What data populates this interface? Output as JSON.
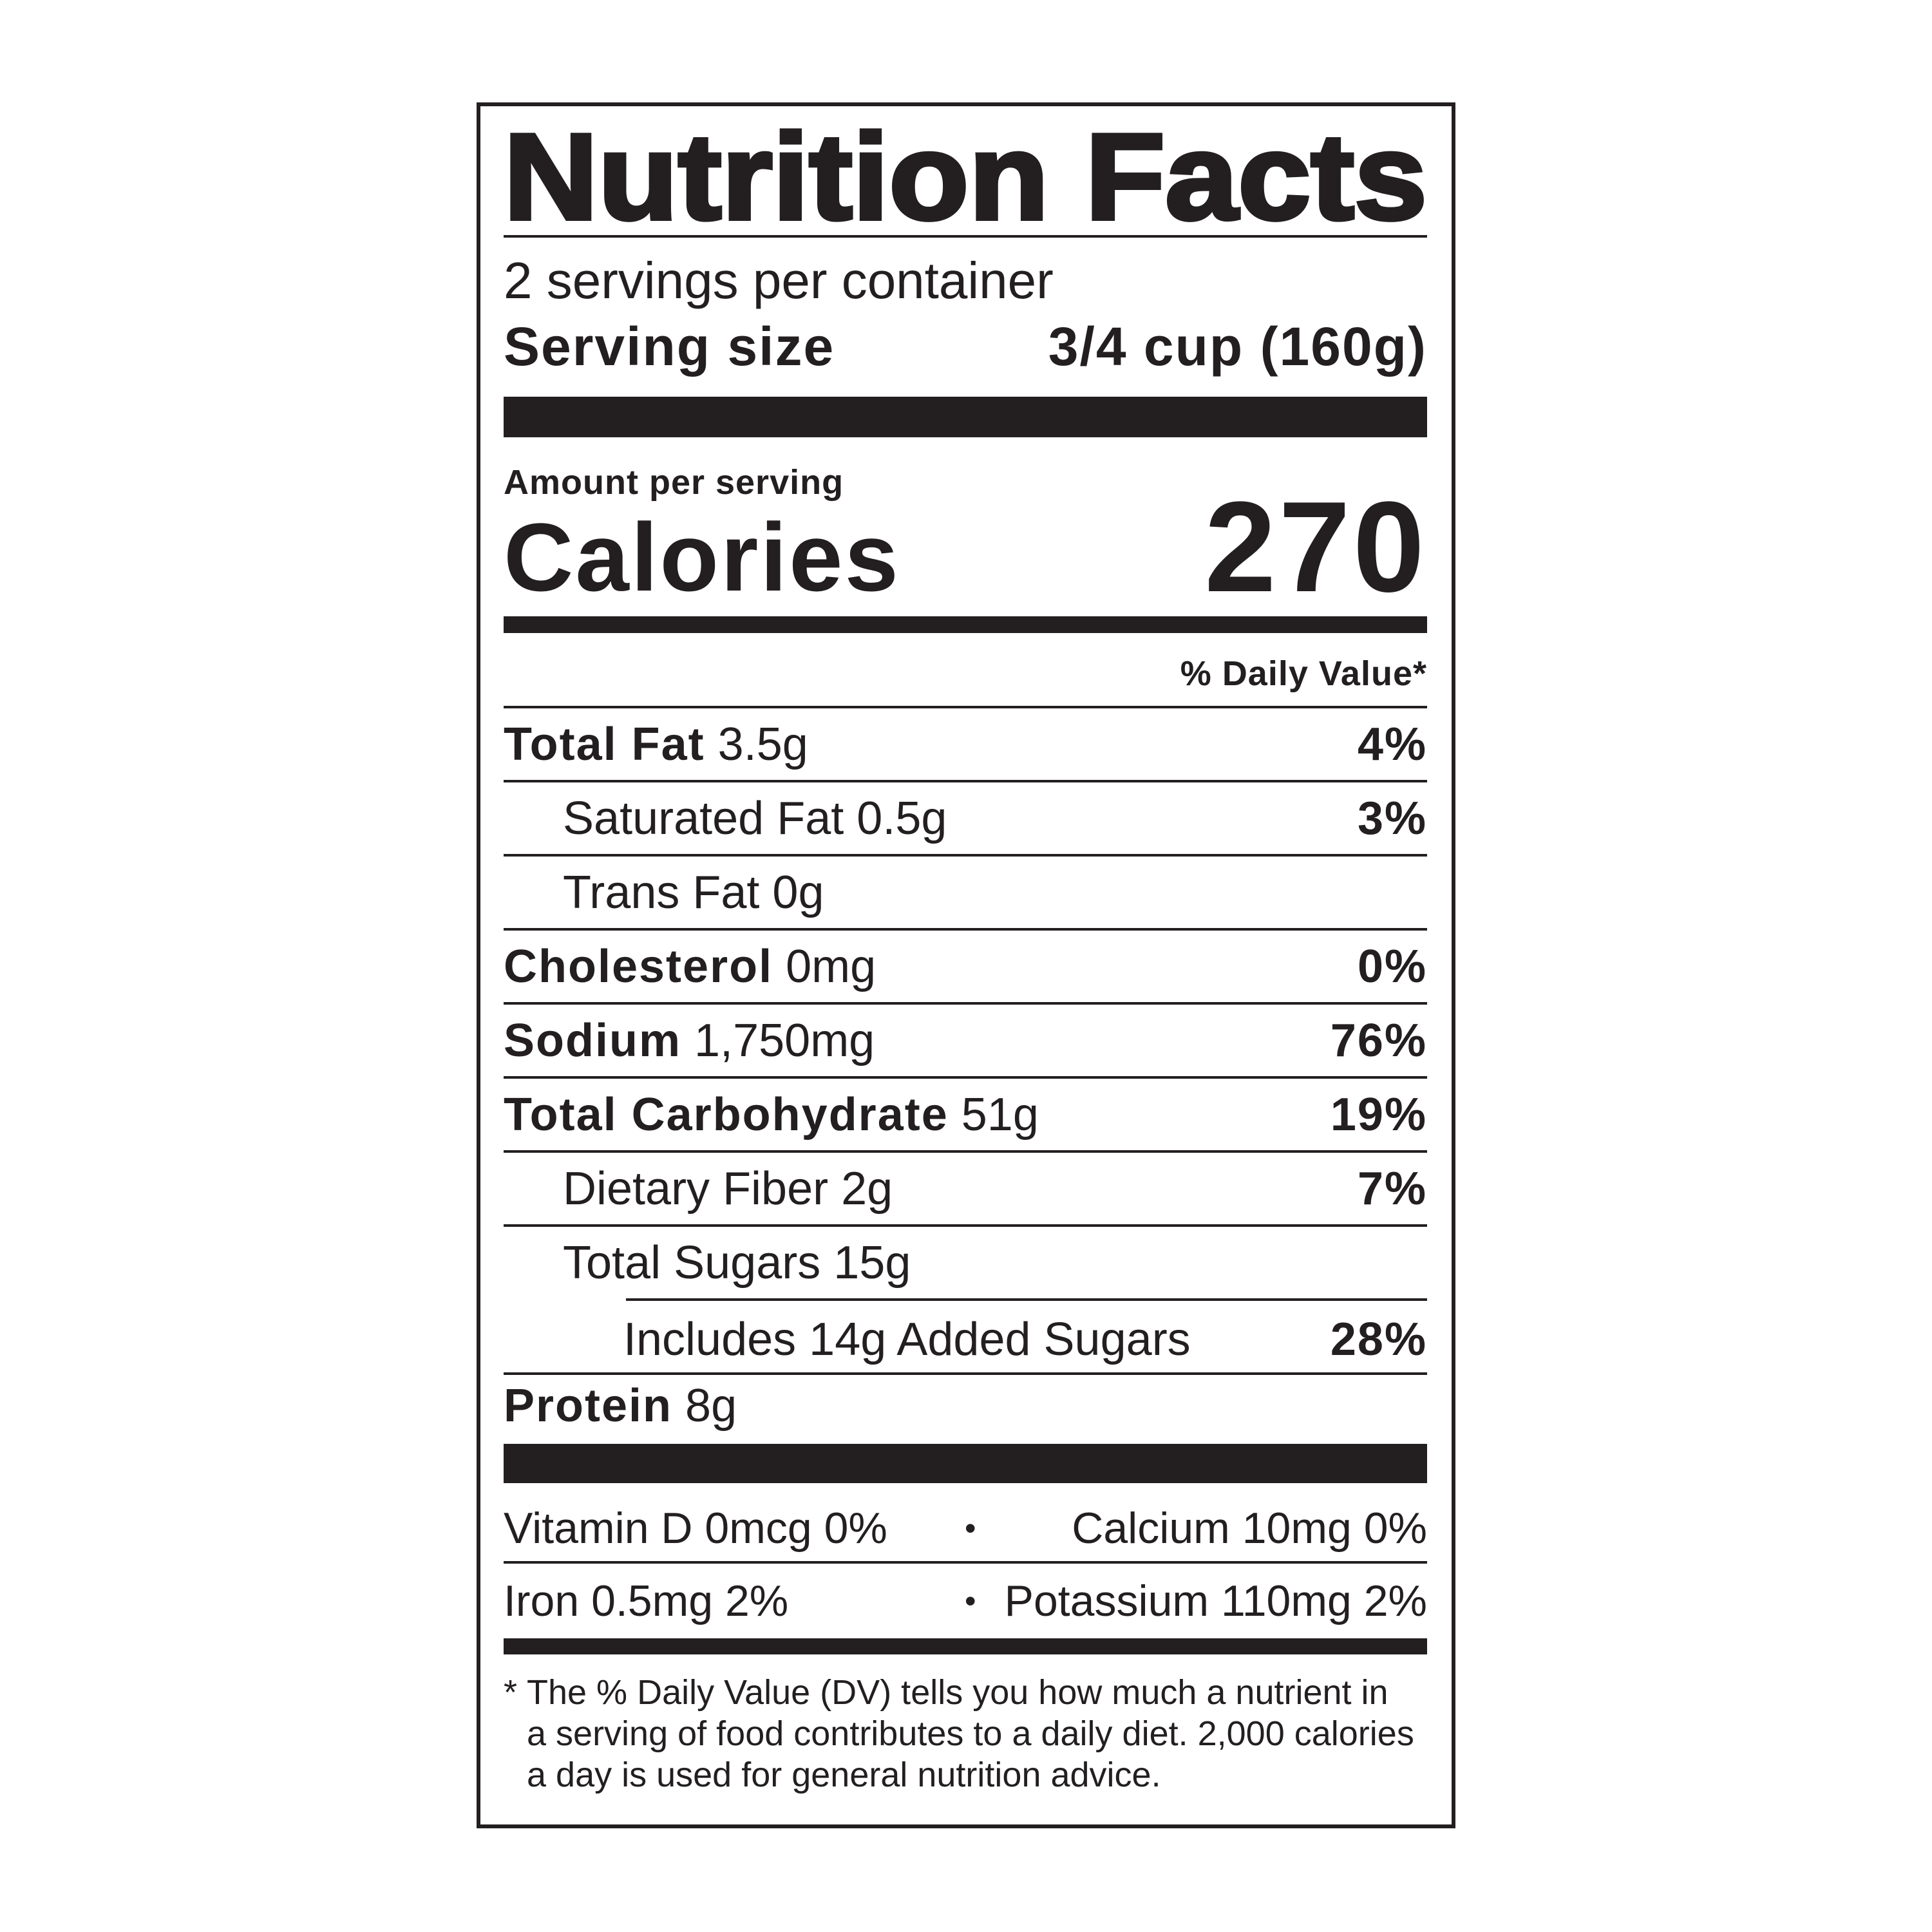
{
  "title": "Nutrition Facts",
  "servings_per_container": "2 servings per container",
  "serving_size": {
    "label": "Serving size",
    "value": "3/4 cup (160g)"
  },
  "amount_per_serving": "Amount per serving",
  "calories": {
    "label": "Calories",
    "value": "270"
  },
  "daily_value_header": "% Daily Value*",
  "nutrients": [
    {
      "name": "Total Fat",
      "amount": "3.5g",
      "dv": "4%"
    },
    {
      "name": "Saturated Fat",
      "amount": "0.5g",
      "dv": "3%"
    },
    {
      "name": "Trans Fat",
      "amount": "0g",
      "dv": ""
    },
    {
      "name": "Cholesterol",
      "amount": "0mg",
      "dv": "0%"
    },
    {
      "name": "Sodium",
      "amount": "1,750mg",
      "dv": "76%"
    },
    {
      "name": "Total Carbohydrate",
      "amount": "51g",
      "dv": "19%"
    },
    {
      "name": "Dietary Fiber",
      "amount": "2g",
      "dv": "7%"
    },
    {
      "name": "Total Sugars",
      "amount": "15g",
      "dv": ""
    },
    {
      "name": "Includes 14g Added Sugars",
      "amount": "",
      "dv": "28%"
    },
    {
      "name": "Protein",
      "amount": "8g",
      "dv": ""
    }
  ],
  "micros": [
    {
      "left": "Vitamin D 0mcg 0%",
      "right": "Calcium 10mg 0%"
    },
    {
      "left": "Iron 0.5mg 2%",
      "right": "Potassium 110mg 2%"
    }
  ],
  "bullet": "•",
  "footnote": {
    "asterisk": "*",
    "lines": [
      "The % Daily Value (DV) tells you how much a nutrient in",
      "a serving of food contributes to a daily diet. 2,000 calories",
      "a day is used for general nutrition advice."
    ]
  }
}
